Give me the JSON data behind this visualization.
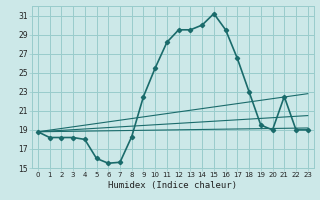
{
  "xlabel": "Humidex (Indice chaleur)",
  "background_color": "#cce8e8",
  "grid_color": "#99cccc",
  "line_color": "#1a6b6b",
  "xlim": [
    -0.5,
    23.5
  ],
  "ylim": [
    15,
    32
  ],
  "xticks": [
    0,
    1,
    2,
    3,
    4,
    5,
    6,
    7,
    8,
    9,
    10,
    11,
    12,
    13,
    14,
    15,
    16,
    17,
    18,
    19,
    20,
    21,
    22,
    23
  ],
  "yticks": [
    15,
    17,
    19,
    21,
    23,
    25,
    27,
    29,
    31
  ],
  "series_main": {
    "x": [
      0,
      1,
      2,
      3,
      4,
      5,
      6,
      7,
      8,
      9,
      10,
      11,
      12,
      13,
      14,
      15,
      16,
      17,
      18,
      19,
      20,
      21,
      22,
      23
    ],
    "y": [
      18.8,
      18.2,
      18.2,
      18.2,
      18.0,
      16.0,
      15.5,
      15.6,
      18.3,
      22.5,
      25.5,
      28.2,
      29.5,
      29.5,
      30.0,
      31.2,
      29.5,
      26.5,
      23.0,
      19.5,
      19.0,
      22.5,
      19.0,
      19.0
    ]
  },
  "series_lines": [
    {
      "x0": 0.0,
      "y0": 18.8,
      "x1": 23.0,
      "y1": 19.2
    },
    {
      "x0": 0.0,
      "y0": 18.8,
      "x1": 23.0,
      "y1": 20.5
    },
    {
      "x0": 0.0,
      "y0": 18.8,
      "x1": 23.0,
      "y1": 22.8
    }
  ]
}
